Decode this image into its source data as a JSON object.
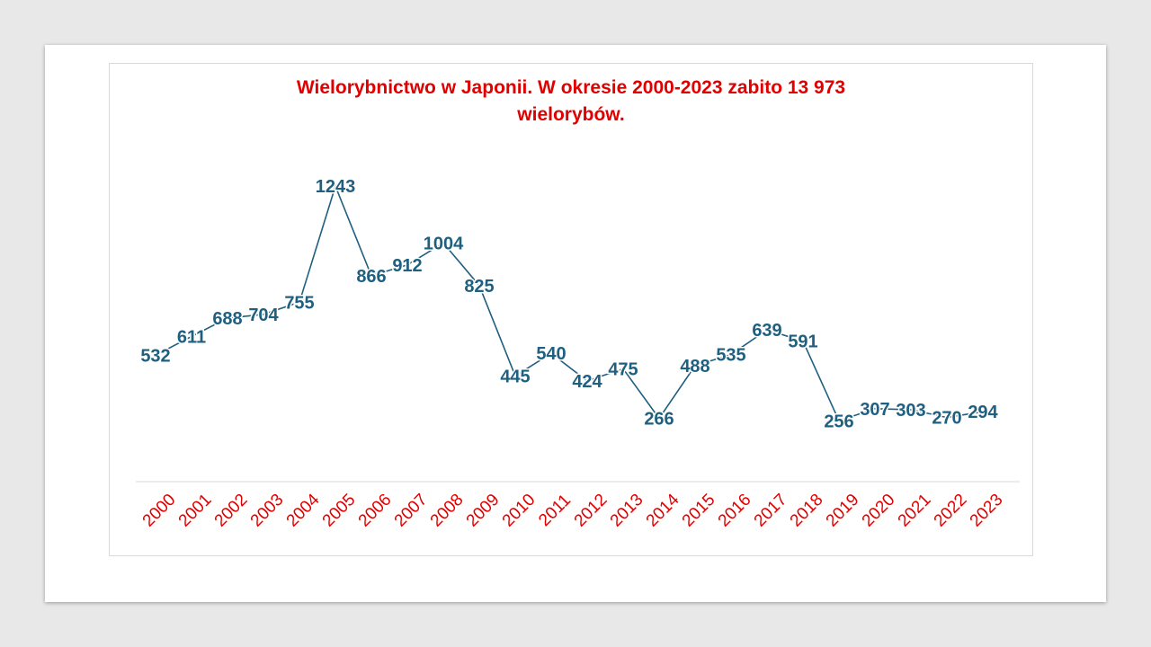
{
  "chart_data": {
    "type": "line",
    "title_lines": [
      "Wielorybnictwo w Japonii. W okresie 2000-2023 zabito 13  973",
      "wielorybów."
    ],
    "xlabel": "",
    "ylabel": "",
    "categories": [
      "2000",
      "2001",
      "2002",
      "2003",
      "2004",
      "2005",
      "2006",
      "2007",
      "2008",
      "2009",
      "2010",
      "2011",
      "2012",
      "2013",
      "2014",
      "2015",
      "2016",
      "2017",
      "2018",
      "2019",
      "2020",
      "2021",
      "2022",
      "2023"
    ],
    "series": [
      {
        "values": [
          532,
          611,
          688,
          704,
          755,
          1243,
          866,
          912,
          1004,
          825,
          445,
          540,
          424,
          475,
          266,
          488,
          535,
          639,
          591,
          256,
          307,
          303,
          270,
          294
        ]
      }
    ],
    "ylim": [
      0,
      1400
    ],
    "grid": false,
    "legend": "none",
    "show_data_labels": true,
    "colors": {
      "line": "#1f5f7f",
      "data_label": "#1f5f7f",
      "title": "#e00000",
      "tick_label": "#e00000",
      "axis": "#d9d9d9"
    }
  }
}
